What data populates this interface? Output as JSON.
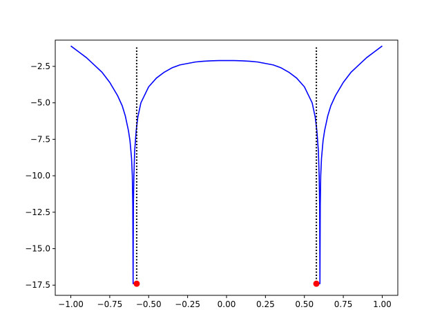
{
  "chart_data": {
    "type": "line",
    "title": "",
    "xlabel": "",
    "ylabel": "",
    "xlim": [
      -1.1,
      1.1
    ],
    "ylim": [
      -18.2,
      -0.7
    ],
    "grid": false,
    "x_ticks": [
      -1.0,
      -0.75,
      -0.5,
      -0.25,
      0.0,
      0.25,
      0.5,
      0.75,
      1.0
    ],
    "x_tick_labels": [
      "−1.00",
      "−0.75",
      "−0.50",
      "−0.25",
      "0.00",
      "0.25",
      "0.50",
      "0.75",
      "1.00"
    ],
    "y_ticks": [
      -2.5,
      -5.0,
      -7.5,
      -10.0,
      -12.5,
      -15.0,
      -17.5
    ],
    "y_tick_labels": [
      "−2.5",
      "−5.0",
      "−7.5",
      "−10.0",
      "−12.5",
      "−15.0",
      "−17.5"
    ],
    "series": [
      {
        "style": "solid",
        "color": "#0000ff",
        "x": [
          -1.0,
          -0.95,
          -0.9,
          -0.85,
          -0.8,
          -0.75,
          -0.7,
          -0.67,
          -0.65,
          -0.63,
          -0.62,
          -0.61,
          -0.605,
          -0.602,
          -0.6,
          -0.598,
          -0.595,
          -0.59,
          -0.58,
          -0.57,
          -0.55,
          -0.5,
          -0.45,
          -0.4,
          -0.35,
          -0.3,
          -0.25,
          -0.2,
          -0.15,
          -0.1,
          -0.05,
          0.0,
          0.05,
          0.1,
          0.15,
          0.2,
          0.25,
          0.3,
          0.35,
          0.4,
          0.45,
          0.5,
          0.55,
          0.57,
          0.58,
          0.59,
          0.595,
          0.598,
          0.6,
          0.602,
          0.605,
          0.61,
          0.62,
          0.63,
          0.65,
          0.67,
          0.7,
          0.75,
          0.8,
          0.85,
          0.9,
          0.95,
          1.0
        ],
        "y": [
          -1.1,
          -1.5,
          -1.9,
          -2.4,
          -2.9,
          -3.6,
          -4.5,
          -5.2,
          -5.9,
          -6.9,
          -7.6,
          -8.8,
          -10.0,
          -12.0,
          -17.4,
          -12.0,
          -10.0,
          -8.3,
          -6.9,
          -6.0,
          -5.0,
          -3.9,
          -3.3,
          -2.9,
          -2.6,
          -2.4,
          -2.3,
          -2.2,
          -2.15,
          -2.12,
          -2.1,
          -2.1,
          -2.1,
          -2.12,
          -2.15,
          -2.2,
          -2.3,
          -2.4,
          -2.6,
          -2.9,
          -3.3,
          -3.9,
          -5.0,
          -6.0,
          -6.9,
          -8.3,
          -10.0,
          -12.0,
          -17.4,
          -12.0,
          -10.0,
          -8.8,
          -7.6,
          -6.9,
          -5.9,
          -5.2,
          -4.5,
          -3.6,
          -2.9,
          -2.4,
          -1.9,
          -1.5,
          -1.1
        ]
      },
      {
        "style": "dotted",
        "color": "#000000",
        "x": [
          -0.577,
          -0.577
        ],
        "y": [
          -1.2,
          -17.4
        ]
      },
      {
        "style": "dotted",
        "color": "#000000",
        "x": [
          0.577,
          0.577
        ],
        "y": [
          -1.2,
          -17.4
        ]
      },
      {
        "style": "markers",
        "color": "#ff0000",
        "x": [
          -0.577,
          0.577
        ],
        "y": [
          -17.4,
          -17.4
        ]
      }
    ]
  }
}
